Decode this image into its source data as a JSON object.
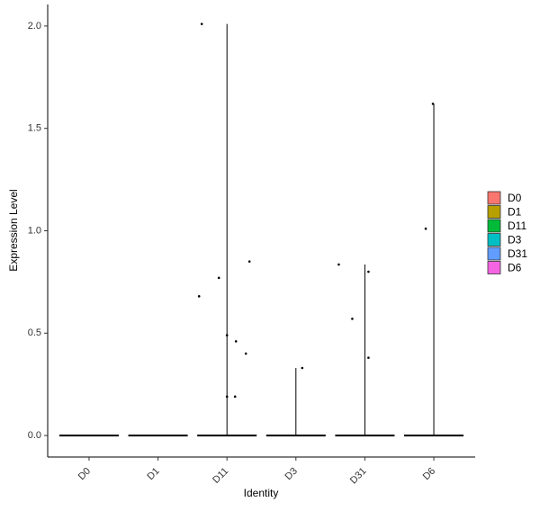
{
  "chart_data": {
    "type": "violin",
    "x_label": "Identity",
    "y_label": "Expression Level",
    "categories": [
      "D0",
      "D1",
      "D11",
      "D3",
      "D31",
      "D6"
    ],
    "series": [
      {
        "name": "D0",
        "color": "#F8766D",
        "values": []
      },
      {
        "name": "D1",
        "color": "#B79F00",
        "values": []
      },
      {
        "name": "D11",
        "color": "#00BA38",
        "values": [
          2.01,
          0.68,
          0.77,
          0.49,
          0.19,
          0.19,
          0.46,
          0.4,
          0.85
        ]
      },
      {
        "name": "D3",
        "color": "#00BFC4",
        "values": [
          0.33
        ]
      },
      {
        "name": "D31",
        "color": "#619CFF",
        "values": [
          0.835,
          0.57,
          0.8,
          0.38
        ]
      },
      {
        "name": "D6",
        "color": "#F564E3",
        "values": [
          1.01,
          1.62
        ]
      }
    ],
    "ylim": [
      -0.105,
      2.105
    ],
    "yticks": [
      {
        "value": 0,
        "label": "0.0"
      },
      0.5,
      {
        "value": 1,
        "label": "1.0"
      },
      1.5,
      {
        "value": 2,
        "label": "2.0"
      }
    ]
  }
}
